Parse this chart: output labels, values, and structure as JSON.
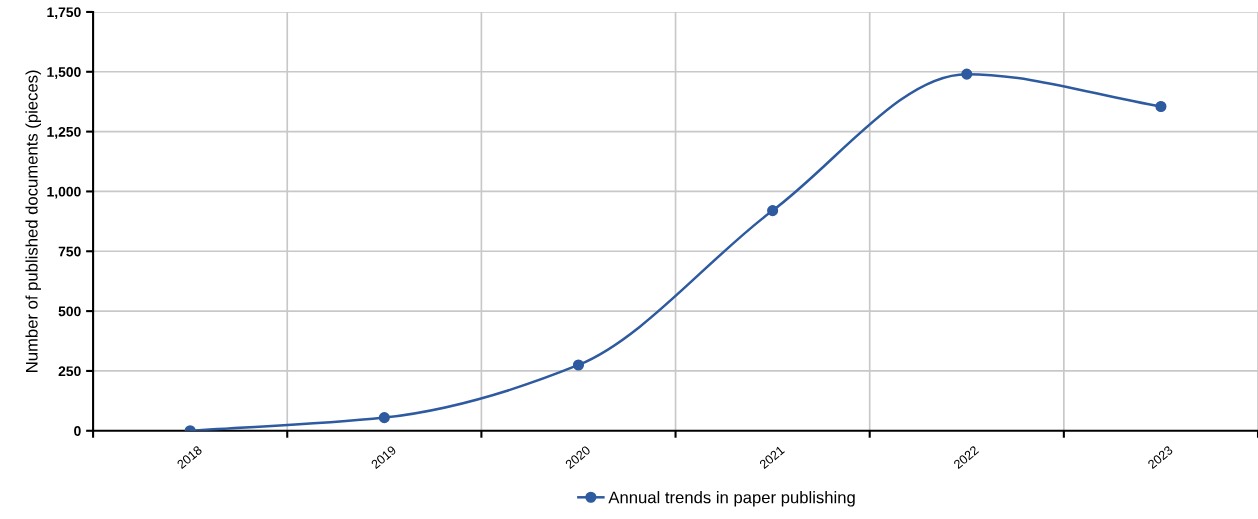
{
  "chart_data": {
    "type": "line",
    "ylabel": "Number of published documents (pieces)",
    "categories": [
      "2018",
      "2019",
      "2020",
      "2021",
      "2022",
      "2023"
    ],
    "series": [
      {
        "name": "Annual trends in paper publishing",
        "color": "#2e5aa0",
        "values": [
          0,
          55,
          275,
          920,
          1490,
          1355
        ]
      }
    ],
    "ylim": [
      0,
      1750
    ],
    "yticks": [
      0,
      250,
      500,
      750,
      {
        "value": 1000,
        "label": "1,000"
      },
      {
        "value": 1250,
        "label": "1,250"
      },
      {
        "value": 1500,
        "label": "1,500"
      },
      {
        "value": 1750,
        "label": "1,750"
      }
    ],
    "grid": true,
    "legend": "bottom",
    "marker": "circle",
    "line_style": "solid"
  }
}
